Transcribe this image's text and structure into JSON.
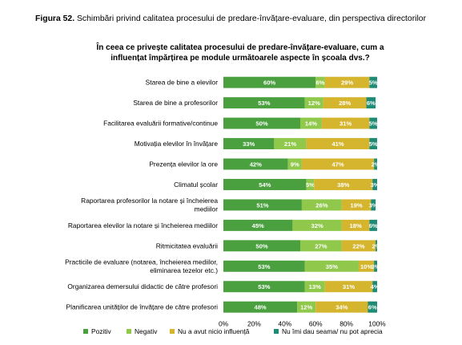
{
  "caption": {
    "figure_number": "Figura 52.",
    "text": " Schimbări privind calitatea procesului de predare-învățare-evaluare, din perspectiva directorilor"
  },
  "chart_data": {
    "type": "bar",
    "orientation": "horizontal",
    "stacked": true,
    "title_lines": [
      "În ceea ce privește calitatea procesului de predare-învățare-evaluare,  cum a",
      "influențat împărțirea  pe module următoarele aspecte în școala dvs.?"
    ],
    "categories": [
      [
        "Starea de bine a elevilor"
      ],
      [
        "Starea de bine a profesorilor"
      ],
      [
        "Facilitarea evaluării formative/continue"
      ],
      [
        "Motivația elevilor în învățare"
      ],
      [
        "Prezența elevilor la ore"
      ],
      [
        "Climatul școlar"
      ],
      [
        "Raportarea profesorilor la notare și încheierea",
        "mediilor"
      ],
      [
        "Raportarea elevilor la notare și încheierea mediilor"
      ],
      [
        "Ritmicitatea evaluării"
      ],
      [
        "Practicile de evaluare (notarea, încheierea mediilor,",
        "eliminarea tezelor etc.)"
      ],
      [
        "Organizarea demersului didactic de către profesori"
      ],
      [
        "Planificarea unităților de învățare de către profesori"
      ]
    ],
    "series": [
      {
        "name": "Pozitiv",
        "color": "#4aa03f",
        "label_color": "#ffffff",
        "values": [
          60,
          53,
          50,
          33,
          42,
          54,
          51,
          45,
          50,
          53,
          53,
          48
        ]
      },
      {
        "name": "Negativ",
        "color": "#8fc84a",
        "label_color": "#ffffff",
        "values": [
          6,
          12,
          14,
          21,
          9,
          5,
          26,
          32,
          27,
          35,
          13,
          12
        ]
      },
      {
        "name": "Nu a avut nicio influență",
        "color": "#d6b52e",
        "label_color": "#ffffff",
        "values": [
          29,
          28,
          31,
          41,
          47,
          38,
          19,
          18,
          22,
          10,
          31,
          34
        ]
      },
      {
        "name": "Nu îmi dau seama/ nu pot aprecia",
        "color": "#1e8b74",
        "label_color": "#ffffff",
        "values": [
          5,
          6,
          5,
          5,
          2,
          3,
          3,
          6,
          2,
          3,
          4,
          6
        ]
      }
    ],
    "value_labels": [
      [
        "60%",
        "6%",
        "29%",
        "5%"
      ],
      [
        "53%",
        "12%",
        "28%",
        "6%"
      ],
      [
        "50%",
        "14%",
        "31%",
        "5%"
      ],
      [
        "33%",
        "21%",
        "41%",
        "5%"
      ],
      [
        "42%",
        "9%",
        "47%",
        "2%"
      ],
      [
        "54%",
        "5%",
        "38%",
        "3%"
      ],
      [
        "51%",
        "26%",
        "19%",
        "3%"
      ],
      [
        "45%",
        "32%",
        "18%",
        "6%"
      ],
      [
        "50%",
        "27%",
        "22%",
        "2%"
      ],
      [
        "53%",
        "35%",
        "10%",
        "3%"
      ],
      [
        "53%",
        "13%",
        "31%",
        "4%"
      ],
      [
        "48%",
        "12%",
        "34%",
        "6%"
      ]
    ],
    "x_ticks": [
      "0%",
      "20%",
      "40%",
      "60%",
      "80%",
      "100%"
    ],
    "xlim": [
      0,
      100
    ],
    "grid": false,
    "legend_position": "bottom"
  }
}
